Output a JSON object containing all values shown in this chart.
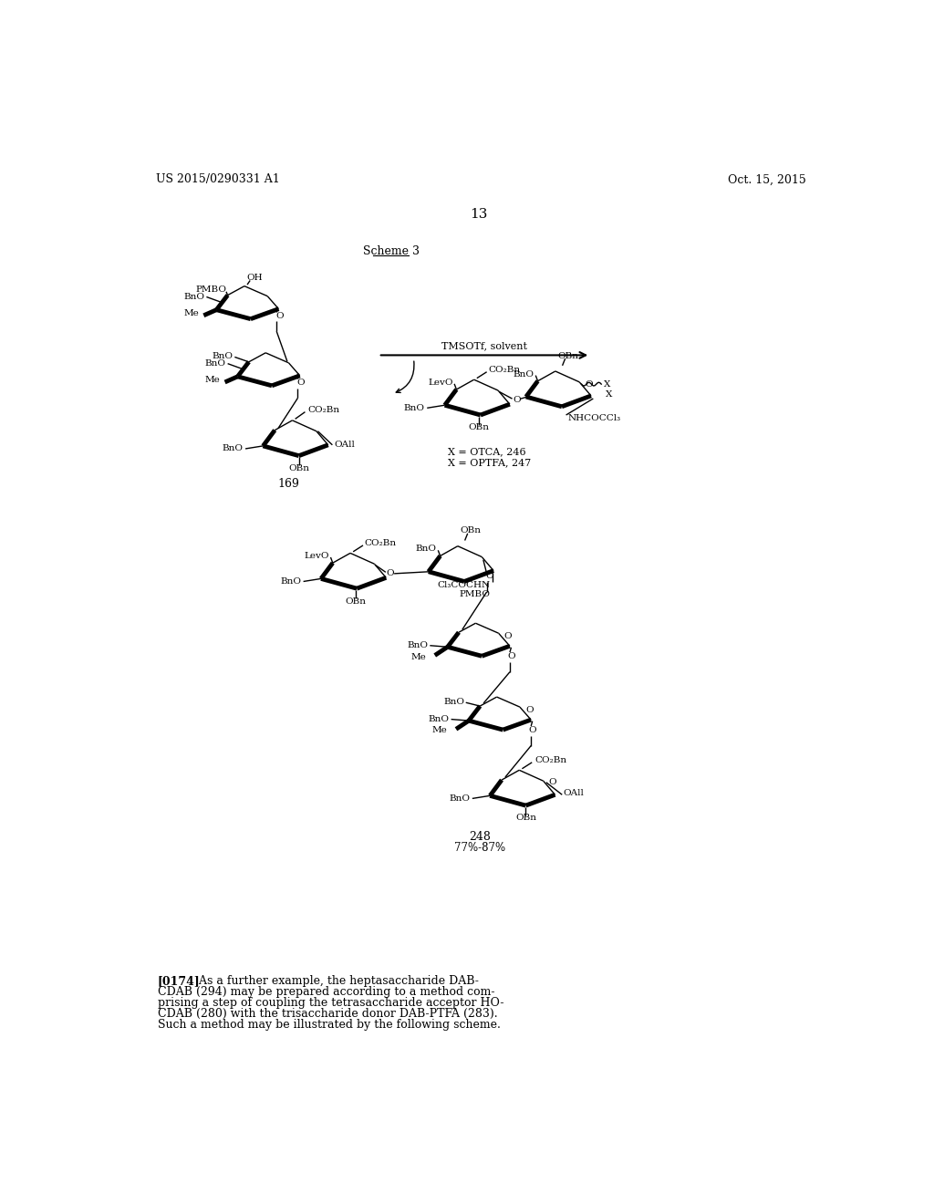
{
  "page_width": 10.24,
  "page_height": 13.2,
  "bg_color": "#ffffff",
  "header_left": "US 2015/0290331 A1",
  "header_right": "Oct. 15, 2015",
  "page_number": "13",
  "scheme_label": "Scheme 3",
  "compound_169_label": "169",
  "compound_246_label": "X = OTCA, 246",
  "compound_247_label": "X = OPTFA, 247",
  "compound_248_label": "248",
  "compound_248_yield": "77%-87%",
  "reaction_arrow_label": "TMSOTf, solvent",
  "paragraph_label": "[0174]",
  "paragraph_line1": "   As a further example, the heptasaccharide DAB-",
  "paragraph_line2": "CDAB (294) may be prepared according to a method com-",
  "paragraph_line3": "prising a step of coupling the tetrasaccharide acceptor HO-",
  "paragraph_line4": "CDAB (280) with the trisaccharide donor DAB-PTFA (283).",
  "paragraph_line5": "Such a method may be illustrated by the following scheme.",
  "font_color": "#000000"
}
